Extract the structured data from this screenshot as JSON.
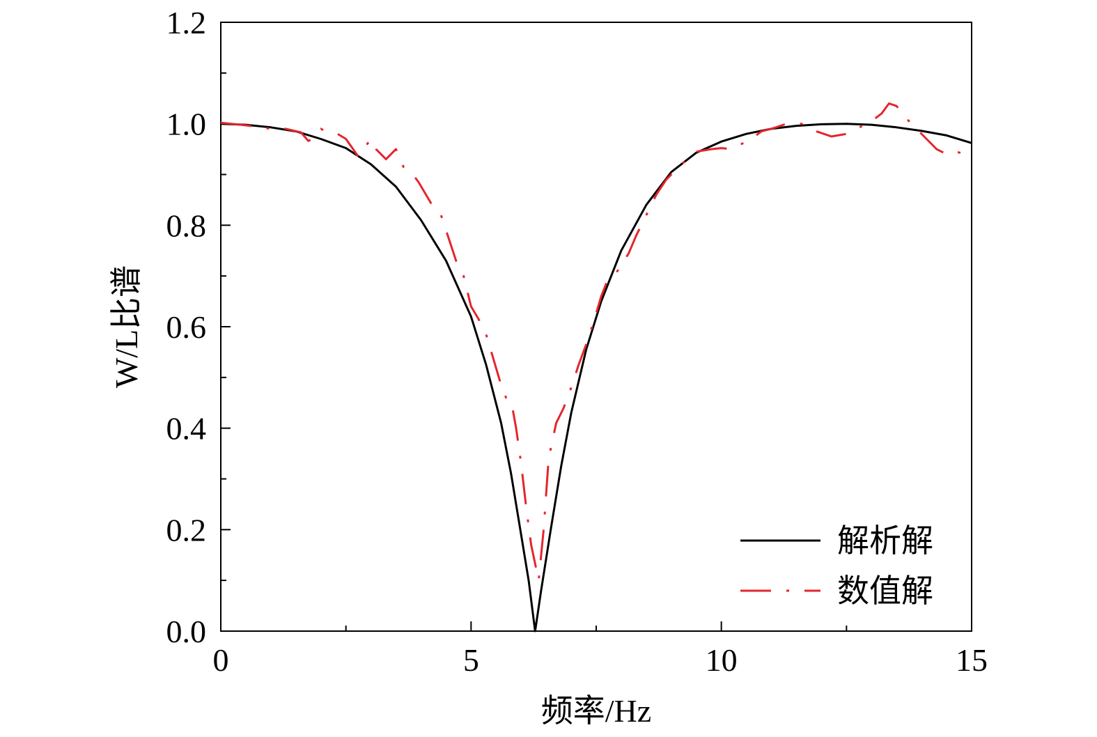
{
  "chart_data": {
    "type": "line",
    "xlabel": "频率/Hz",
    "ylabel": "W/L比谱",
    "xlim": [
      0,
      15
    ],
    "ylim": [
      0,
      1.2
    ],
    "xticks": [
      0,
      5,
      10,
      15
    ],
    "xtick_labels": [
      "0",
      "5",
      "10",
      "15"
    ],
    "yticks": [
      0,
      0.2,
      0.4,
      0.6,
      0.8,
      1.0,
      1.2
    ],
    "ytick_labels": [
      "0.0",
      "0.2",
      "0.4",
      "0.6",
      "0.8",
      "1.0",
      "1.2"
    ],
    "grid": false,
    "legend_position": "bottom-right",
    "colors": {
      "analytic": "#000000",
      "numeric": "#e3262d"
    },
    "series": [
      {
        "name": "解析解",
        "style": "solid",
        "x": [
          0,
          0.5,
          1.0,
          1.5,
          2.0,
          2.5,
          3.0,
          3.5,
          4.0,
          4.5,
          5.0,
          5.3,
          5.6,
          5.8,
          6.0,
          6.15,
          6.28,
          6.4,
          6.6,
          6.8,
          7.0,
          7.3,
          7.6,
          8.0,
          8.5,
          9.0,
          9.5,
          10.0,
          10.5,
          11.0,
          11.5,
          12.0,
          12.5,
          13.0,
          13.5,
          14.0,
          14.5,
          15.0
        ],
        "y": [
          1.0,
          0.998,
          0.993,
          0.985,
          0.97,
          0.952,
          0.92,
          0.876,
          0.81,
          0.73,
          0.62,
          0.525,
          0.41,
          0.31,
          0.19,
          0.1,
          0.0,
          0.08,
          0.205,
          0.325,
          0.43,
          0.555,
          0.65,
          0.75,
          0.84,
          0.905,
          0.943,
          0.965,
          0.98,
          0.99,
          0.996,
          0.999,
          1.0,
          0.998,
          0.993,
          0.986,
          0.977,
          0.962
        ]
      },
      {
        "name": "数值解",
        "style": "dashdot",
        "x": [
          0,
          0.5,
          1.0,
          1.3,
          1.6,
          1.75,
          1.9,
          2.0,
          2.1,
          2.3,
          2.5,
          2.75,
          2.85,
          3.0,
          3.1,
          3.3,
          3.5,
          3.65,
          3.8,
          3.95,
          4.1,
          4.25,
          4.4,
          4.55,
          4.7,
          4.85,
          5.0,
          5.15,
          5.3,
          5.45,
          5.6,
          5.7,
          5.8,
          5.9,
          6.0,
          6.1,
          6.2,
          6.35,
          6.45,
          6.55,
          6.7,
          6.85,
          7.0,
          7.15,
          7.3,
          7.45,
          7.6,
          7.7,
          7.85,
          8.0,
          8.15,
          8.3,
          8.5,
          8.7,
          8.9,
          9.2,
          9.5,
          9.8,
          10.0,
          10.2,
          10.4,
          10.6,
          10.8,
          11.0,
          11.3,
          11.6,
          11.9,
          12.2,
          12.5,
          12.8,
          13.0,
          13.2,
          13.35,
          13.5,
          13.7,
          13.9,
          14.1,
          14.3,
          14.5,
          14.7,
          15.0
        ],
        "y": [
          1.002,
          0.997,
          0.99,
          0.99,
          0.983,
          0.966,
          0.975,
          0.99,
          0.985,
          0.982,
          0.97,
          0.935,
          0.95,
          0.97,
          0.95,
          0.93,
          0.95,
          0.915,
          0.905,
          0.885,
          0.86,
          0.835,
          0.82,
          0.775,
          0.73,
          0.7,
          0.64,
          0.615,
          0.585,
          0.535,
          0.485,
          0.46,
          0.455,
          0.4,
          0.33,
          0.245,
          0.17,
          0.1,
          0.2,
          0.34,
          0.41,
          0.44,
          0.48,
          0.525,
          0.565,
          0.61,
          0.66,
          0.685,
          0.7,
          0.72,
          0.745,
          0.78,
          0.82,
          0.86,
          0.89,
          0.92,
          0.945,
          0.95,
          0.952,
          0.95,
          0.96,
          0.97,
          0.985,
          0.99,
          1.0,
          1.0,
          0.985,
          0.975,
          0.98,
          0.995,
          1.005,
          1.02,
          1.04,
          1.035,
          1.01,
          0.99,
          0.97,
          0.95,
          0.94,
          0.945,
          0.935
        ]
      }
    ]
  }
}
